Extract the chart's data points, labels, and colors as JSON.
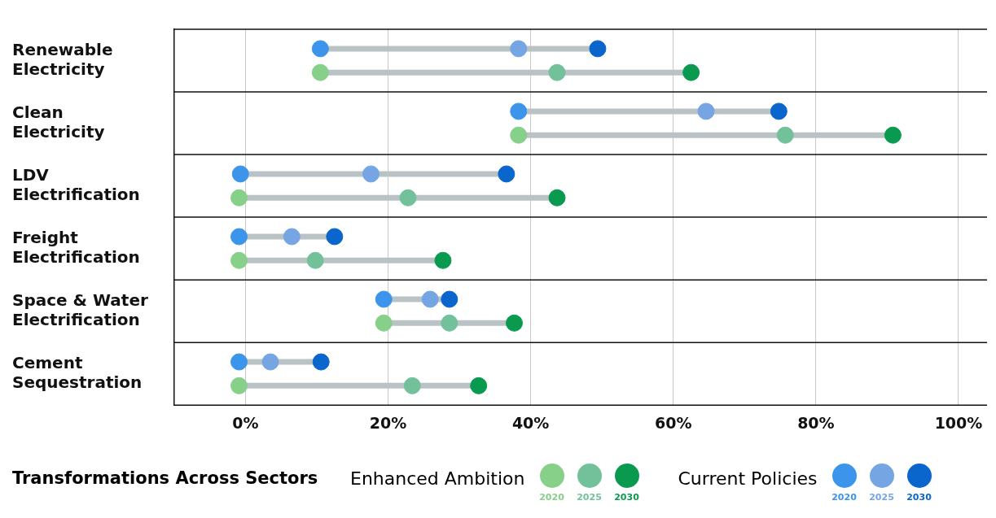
{
  "chart_data": {
    "type": "scatter",
    "orientation": "horizontal",
    "title": "Transformations Across Sectors",
    "categories": [
      "Renewable Electricity",
      "Clean Electricity",
      "LDV Electrification",
      "Freight Electrification",
      "Space & Water Electrification",
      "Cement Sequestration"
    ],
    "series": [
      {
        "name": "2020",
        "color": "#86d08a",
        "values": [
          10.5,
          38.3,
          -0.9,
          -0.9,
          19.4,
          -0.9
        ]
      },
      {
        "name": "2025",
        "color": "#72c19a",
        "values": [
          43.7,
          75.7,
          22.8,
          9.8,
          28.6,
          23.4
        ]
      },
      {
        "name": "2030",
        "color": "#0a9a4f",
        "values": [
          62.5,
          90.8,
          43.7,
          27.7,
          37.7,
          32.7
        ]
      },
      {
        "name": "2020",
        "color": "#3c95eb",
        "values": [
          10.5,
          38.3,
          -0.7,
          -0.9,
          19.4,
          -0.9
        ]
      },
      {
        "name": "2025",
        "color": "#76a5e3",
        "values": [
          38.3,
          64.6,
          17.6,
          6.5,
          25.9,
          3.5
        ]
      },
      {
        "name": "2030",
        "color": "#0a66cc",
        "values": [
          49.4,
          74.8,
          36.6,
          12.5,
          28.6,
          10.6
        ]
      }
    ],
    "annotations": [
      "Enhanced Ambition",
      "Current Policies"
    ],
    "xlim": [
      -10,
      104
    ],
    "xticks": [
      {
        "value": 0,
        "label": "0%"
      },
      {
        "value": 20,
        "label": "20%"
      },
      {
        "value": 40,
        "label": "40%"
      },
      {
        "value": 60,
        "label": "60%"
      },
      {
        "value": 80,
        "label": "80%"
      },
      {
        "value": 100,
        "label": "100%"
      }
    ],
    "grid": "x",
    "marker": "circle",
    "legend": "bottom"
  }
}
